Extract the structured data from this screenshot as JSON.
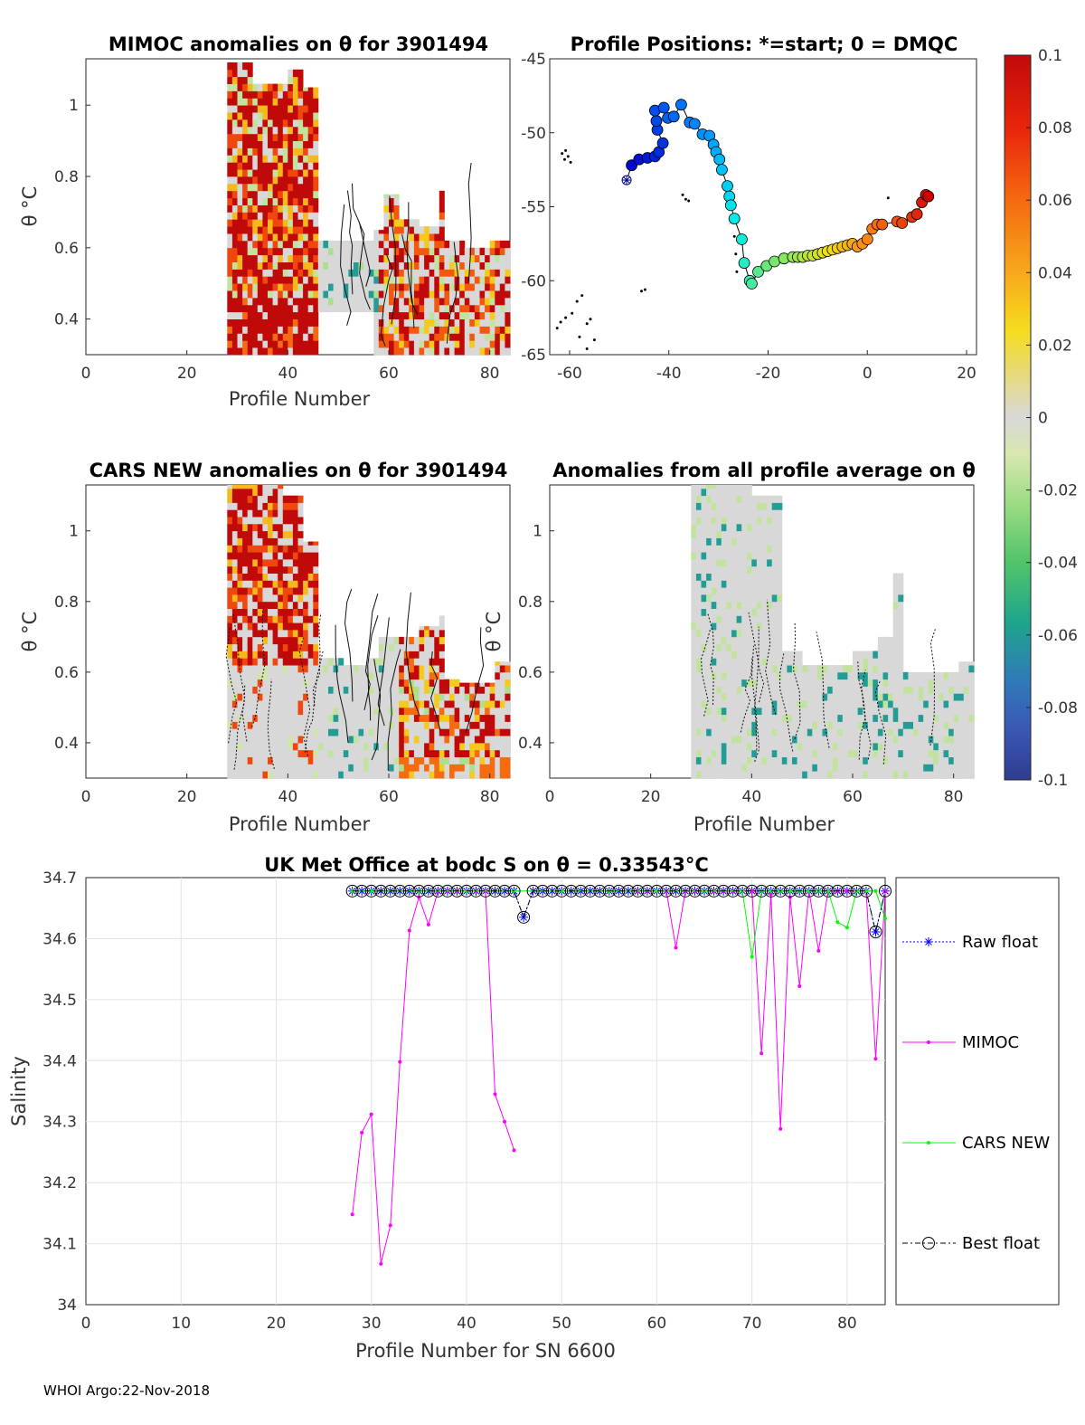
{
  "footer": "WHOI Argo:22-Nov-2018",
  "colorbar": {
    "min": -0.1,
    "max": 0.1,
    "ticks": [
      "0.1",
      "0.08",
      "0.06",
      "0.04",
      "0.02",
      "0",
      "-0.02",
      "-0.04",
      "-0.06",
      "-0.08",
      "-0.1"
    ]
  },
  "chart_data": [
    {
      "id": "mimoc",
      "type": "heatmap",
      "title": "MIMOC anomalies on θ  for 3901494",
      "xlabel": "Profile Number",
      "ylabel": "θ °C",
      "xlim": [
        0,
        84
      ],
      "ylim": [
        0.3,
        1.13
      ],
      "xticks": [
        0,
        20,
        40,
        60,
        80
      ],
      "yticks": [
        0.4,
        0.6,
        0.8,
        1
      ],
      "columns": [
        {
          "x0": 28,
          "x1": 33,
          "top": 1.12,
          "bottom": 0.3
        },
        {
          "x0": 33,
          "x1": 40,
          "top": 1.06,
          "bottom": 0.3
        },
        {
          "x0": 40,
          "x1": 43,
          "top": 1.1,
          "bottom": 0.3
        },
        {
          "x0": 43,
          "x1": 46,
          "top": 1.05,
          "bottom": 0.3
        },
        {
          "x0": 46,
          "x1": 50,
          "top": 0.62,
          "bottom": 0.3
        },
        {
          "x0": 50,
          "x1": 57,
          "top": 0.62,
          "bottom": 0.3
        },
        {
          "x0": 57,
          "x1": 59,
          "top": 0.65,
          "bottom": 0.3
        },
        {
          "x0": 59,
          "x1": 62,
          "top": 0.75,
          "bottom": 0.3
        },
        {
          "x0": 62,
          "x1": 66,
          "top": 0.68,
          "bottom": 0.3
        },
        {
          "x0": 66,
          "x1": 70,
          "top": 0.66,
          "bottom": 0.3
        },
        {
          "x0": 70,
          "x1": 71,
          "top": 0.76,
          "bottom": 0.3
        },
        {
          "x0": 71,
          "x1": 75,
          "top": 0.62,
          "bottom": 0.3
        },
        {
          "x0": 75,
          "x1": 80,
          "top": 0.6,
          "bottom": 0.3
        },
        {
          "x0": 80,
          "x1": 84,
          "top": 0.62,
          "bottom": 0.3
        }
      ],
      "blank_region": {
        "x0": 46,
        "x1": 57,
        "top": 0.41,
        "bottom": 0.3
      }
    },
    {
      "id": "positions",
      "type": "scatter",
      "title": "Profile Positions: *=start; 0 = DMQC",
      "xlim": [
        -64,
        22
      ],
      "ylim": [
        -65,
        -45
      ],
      "xticks": [
        -60,
        -40,
        -20,
        0,
        20
      ],
      "yticks": [
        "-45",
        "-50",
        "-55",
        "-60",
        "-65"
      ],
      "start": {
        "lon": -48.5,
        "lat": -53.2
      },
      "track": [
        [
          -48.5,
          -53.2
        ],
        [
          -47.5,
          -52.2
        ],
        [
          -46,
          -51.8
        ],
        [
          -44.3,
          -51.7
        ],
        [
          -42.8,
          -51.6
        ],
        [
          -42,
          -51.3
        ],
        [
          -41.2,
          -50.7
        ],
        [
          -42.3,
          -49.8
        ],
        [
          -42.5,
          -49.2
        ],
        [
          -42.8,
          -48.5
        ],
        [
          -41,
          -48.3
        ],
        [
          -40.2,
          -49
        ],
        [
          -39,
          -48.9
        ],
        [
          -37.5,
          -48.1
        ],
        [
          -35.8,
          -49.3
        ],
        [
          -34.8,
          -49.4
        ],
        [
          -33.2,
          -50.1
        ],
        [
          -31.8,
          -50.2
        ],
        [
          -31,
          -50.8
        ],
        [
          -30.5,
          -51.3
        ],
        [
          -29.8,
          -51.8
        ],
        [
          -29.3,
          -52.5
        ],
        [
          -28.2,
          -53.6
        ],
        [
          -27.8,
          -54.3
        ],
        [
          -27.5,
          -54.9
        ],
        [
          -26.8,
          -55.8
        ],
        [
          -25.3,
          -57.2
        ],
        [
          -24.8,
          -58.8
        ],
        [
          -23.7,
          -60
        ],
        [
          -23.3,
          -60.2
        ],
        [
          -22,
          -59.4
        ],
        [
          -20.3,
          -59
        ],
        [
          -18.7,
          -58.7
        ],
        [
          -16.8,
          -58.5
        ],
        [
          -15,
          -58.4
        ],
        [
          -14,
          -58.4
        ],
        [
          -13,
          -58.4
        ],
        [
          -12,
          -58.3
        ],
        [
          -11,
          -58.3
        ],
        [
          -10,
          -58.2
        ],
        [
          -9,
          -58.1
        ],
        [
          -8,
          -58
        ],
        [
          -7,
          -57.9
        ],
        [
          -6,
          -57.8
        ],
        [
          -5,
          -57.7
        ],
        [
          -4,
          -57.6
        ],
        [
          -3,
          -57.5
        ],
        [
          -2,
          -57.7
        ],
        [
          -1,
          -57.5
        ],
        [
          0,
          -57.2
        ],
        [
          1,
          -56.5
        ],
        [
          2,
          -56.2
        ],
        [
          3,
          -56.2
        ],
        [
          6,
          -56
        ],
        [
          7,
          -56.1
        ],
        [
          9,
          -55.7
        ],
        [
          10,
          -55.5
        ],
        [
          11,
          -54.7
        ],
        [
          11.8,
          -54.2
        ],
        [
          12.3,
          -54.3
        ]
      ],
      "color_scale": "profile index (blue → red)"
    },
    {
      "id": "cars",
      "type": "heatmap",
      "title": "CARS NEW anomalies on θ for 3901494",
      "xlabel": "Profile Number",
      "ylabel": "θ °C",
      "xlim": [
        0,
        84
      ],
      "ylim": [
        0.3,
        1.13
      ],
      "xticks": [
        0,
        20,
        40,
        60,
        80
      ],
      "yticks": [
        0.4,
        0.6,
        0.8,
        1
      ]
    },
    {
      "id": "average",
      "type": "heatmap",
      "title": "Anomalies from all profile average on θ",
      "xlabel": "Profile Number",
      "ylabel": "θ °C",
      "xlim": [
        0,
        84
      ],
      "ylim": [
        0.3,
        1.13
      ],
      "xticks": [
        0,
        20,
        40,
        60,
        80
      ],
      "yticks": [
        0.4,
        0.6,
        0.8,
        1
      ]
    },
    {
      "id": "salinity",
      "type": "line",
      "title": "UK Met Office at bodc S on θ = 0.33543°C",
      "xlabel": "Profile Number for SN 6600",
      "ylabel": "Salinity",
      "xlim": [
        0,
        84
      ],
      "ylim": [
        34,
        34.7
      ],
      "grid": true,
      "xticks": [
        0,
        10,
        20,
        30,
        40,
        50,
        60,
        70,
        80
      ],
      "yticks": [
        "34",
        "34.1",
        "34.2",
        "34.3",
        "34.4",
        "34.5",
        "34.6",
        "34.7"
      ],
      "series": [
        {
          "name": "Raw float",
          "color": "#0000ff",
          "style": "dotted",
          "marker": "asterisk",
          "x": [
            28,
            29,
            30,
            31,
            32,
            33,
            34,
            35,
            36,
            37,
            38,
            39,
            40,
            41,
            42,
            43,
            44,
            45,
            46,
            47,
            48,
            49,
            50,
            51,
            52,
            53,
            54,
            55,
            56,
            57,
            58,
            59,
            60,
            61,
            62,
            63,
            64,
            65,
            66,
            67,
            68,
            69,
            70,
            71,
            72,
            73,
            74,
            75,
            76,
            77,
            78,
            79,
            80,
            81,
            82,
            83,
            84
          ],
          "y": [
            34.678,
            34.678,
            34.678,
            34.678,
            34.678,
            34.678,
            34.678,
            34.678,
            34.678,
            34.678,
            34.678,
            34.678,
            34.678,
            34.678,
            34.678,
            34.678,
            34.678,
            34.678,
            34.635,
            34.678,
            34.678,
            34.678,
            34.678,
            34.678,
            34.678,
            34.678,
            34.678,
            34.678,
            34.678,
            34.678,
            34.678,
            34.678,
            34.678,
            34.678,
            34.678,
            34.678,
            34.678,
            34.678,
            34.678,
            34.678,
            34.678,
            34.678,
            34.678,
            34.678,
            34.678,
            34.678,
            34.678,
            34.678,
            34.678,
            34.678,
            34.678,
            34.678,
            34.678,
            34.678,
            34.678,
            34.611,
            34.678
          ]
        },
        {
          "name": "MIMOC",
          "color": "#ff00ff",
          "style": "solid",
          "marker": "dot",
          "x": [
            28,
            29,
            30,
            31,
            32,
            33,
            34,
            35,
            36,
            37,
            38,
            39,
            40,
            41,
            42,
            43,
            44,
            45
          ],
          "y": [
            34.148,
            34.282,
            34.312,
            34.067,
            34.13,
            34.398,
            34.613,
            34.668,
            34.623,
            34.678,
            34.678,
            34.678,
            34.678,
            34.678,
            34.678,
            34.345,
            34.3,
            34.253
          ]
        },
        {
          "name": "MIMOC",
          "color": "#ff00ff",
          "style": "solid",
          "marker": "dot",
          "x": [
            58,
            59,
            60,
            61,
            62,
            63,
            64,
            65,
            66,
            67,
            68,
            69,
            70,
            71,
            72,
            73,
            74,
            75,
            76,
            77,
            78,
            79,
            80,
            81,
            82,
            83,
            84
          ],
          "y": [
            34.678,
            34.678,
            34.678,
            34.678,
            34.585,
            34.678,
            34.678,
            34.678,
            34.678,
            34.678,
            34.678,
            34.678,
            34.678,
            34.412,
            34.673,
            34.288,
            34.668,
            34.522,
            34.678,
            34.58,
            34.678,
            34.678,
            34.678,
            34.678,
            34.678,
            34.403,
            34.678
          ]
        },
        {
          "name": "CARS NEW",
          "color": "#00ff00",
          "style": "solid",
          "marker": "dot",
          "x": [
            28,
            30,
            35,
            40,
            45,
            50,
            55,
            60,
            65,
            69,
            70,
            71,
            72,
            73,
            74,
            75,
            76,
            77,
            78,
            79,
            80,
            81,
            82,
            83,
            84
          ],
          "y": [
            34.678,
            34.678,
            34.678,
            34.678,
            34.678,
            34.678,
            34.678,
            34.678,
            34.678,
            34.678,
            34.57,
            34.678,
            34.678,
            34.678,
            34.678,
            34.678,
            34.678,
            34.678,
            34.678,
            34.627,
            34.618,
            34.678,
            34.678,
            34.678,
            34.633
          ]
        },
        {
          "name": "Best float",
          "color": "#000000",
          "style": "dashdot",
          "marker": "circle",
          "x": [
            28,
            29,
            30,
            31,
            32,
            33,
            34,
            35,
            36,
            37,
            38,
            39,
            40,
            41,
            42,
            43,
            44,
            45,
            46,
            47,
            48,
            49,
            50,
            51,
            52,
            53,
            54,
            55,
            56,
            57,
            58,
            59,
            60,
            61,
            62,
            63,
            64,
            65,
            66,
            67,
            68,
            69,
            70,
            71,
            72,
            73,
            74,
            75,
            76,
            77,
            78,
            79,
            80,
            81,
            82,
            83,
            84
          ],
          "y": [
            34.678,
            34.678,
            34.678,
            34.678,
            34.678,
            34.678,
            34.678,
            34.678,
            34.678,
            34.678,
            34.678,
            34.678,
            34.678,
            34.678,
            34.678,
            34.678,
            34.678,
            34.678,
            34.635,
            34.678,
            34.678,
            34.678,
            34.678,
            34.678,
            34.678,
            34.678,
            34.678,
            34.678,
            34.678,
            34.678,
            34.678,
            34.678,
            34.678,
            34.678,
            34.678,
            34.678,
            34.678,
            34.678,
            34.678,
            34.678,
            34.678,
            34.678,
            34.678,
            34.678,
            34.678,
            34.678,
            34.678,
            34.678,
            34.678,
            34.678,
            34.678,
            34.678,
            34.678,
            34.678,
            34.678,
            34.611,
            34.678
          ]
        }
      ],
      "legend": [
        "Raw float",
        "MIMOC",
        "CARS NEW",
        "Best float"
      ]
    }
  ]
}
